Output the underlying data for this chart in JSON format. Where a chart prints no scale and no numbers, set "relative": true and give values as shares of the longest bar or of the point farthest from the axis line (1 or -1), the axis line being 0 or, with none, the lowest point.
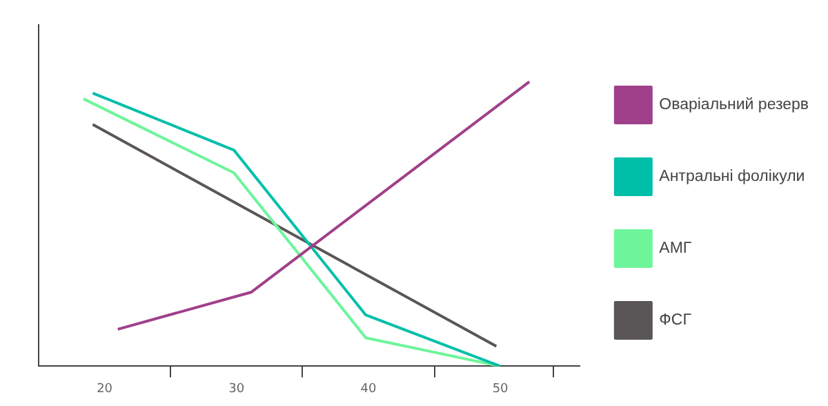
{
  "chart_data": {
    "type": "line",
    "relative": true,
    "xlim": [
      15,
      56
    ],
    "xticks": [
      20,
      {
        "value": 25,
        "label": null
      },
      30,
      {
        "value": 35,
        "label": null
      },
      40,
      {
        "value": 45,
        "label": null
      },
      50,
      {
        "value": 54,
        "label": null
      }
    ],
    "legend": "right",
    "grid": false,
    "marker": "none",
    "series": [
      {
        "name": "Оваріальний резерв",
        "color": "#a0408a",
        "x": [
          21,
          31.1,
          52.2
        ],
        "values": [
          0.13,
          0.26,
          1
        ]
      },
      {
        "name": "Антральні фолікули",
        "color": "#00bfa8",
        "x": [
          19.1,
          29.8,
          39.8,
          50
        ],
        "values": [
          0.96,
          0.76,
          0.18,
          0
        ]
      },
      {
        "name": "АМГ",
        "color": "#6ef59a",
        "x": [
          18.4,
          29.8,
          39.8,
          50
        ],
        "values": [
          0.94,
          0.68,
          0.1,
          0
        ]
      },
      {
        "name": "ФСГ",
        "color": "#5a5556",
        "x": [
          19.1,
          49.7
        ],
        "values": [
          0.85,
          0.07
        ]
      }
    ]
  }
}
